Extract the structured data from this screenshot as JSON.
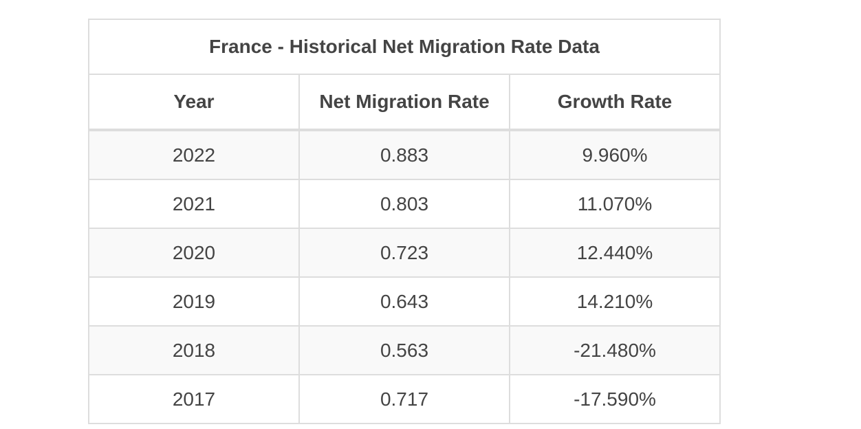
{
  "table": {
    "title": "France - Historical Net Migration Rate Data",
    "headers": [
      "Year",
      "Net Migration Rate",
      "Growth Rate"
    ],
    "rows": [
      [
        "2022",
        "0.883",
        "9.960%"
      ],
      [
        "2021",
        "0.803",
        "11.070%"
      ],
      [
        "2020",
        "0.723",
        "12.440%"
      ],
      [
        "2019",
        "0.643",
        "14.210%"
      ],
      [
        "2018",
        "0.563",
        "-21.480%"
      ],
      [
        "2017",
        "0.717",
        "-17.590%"
      ]
    ]
  }
}
